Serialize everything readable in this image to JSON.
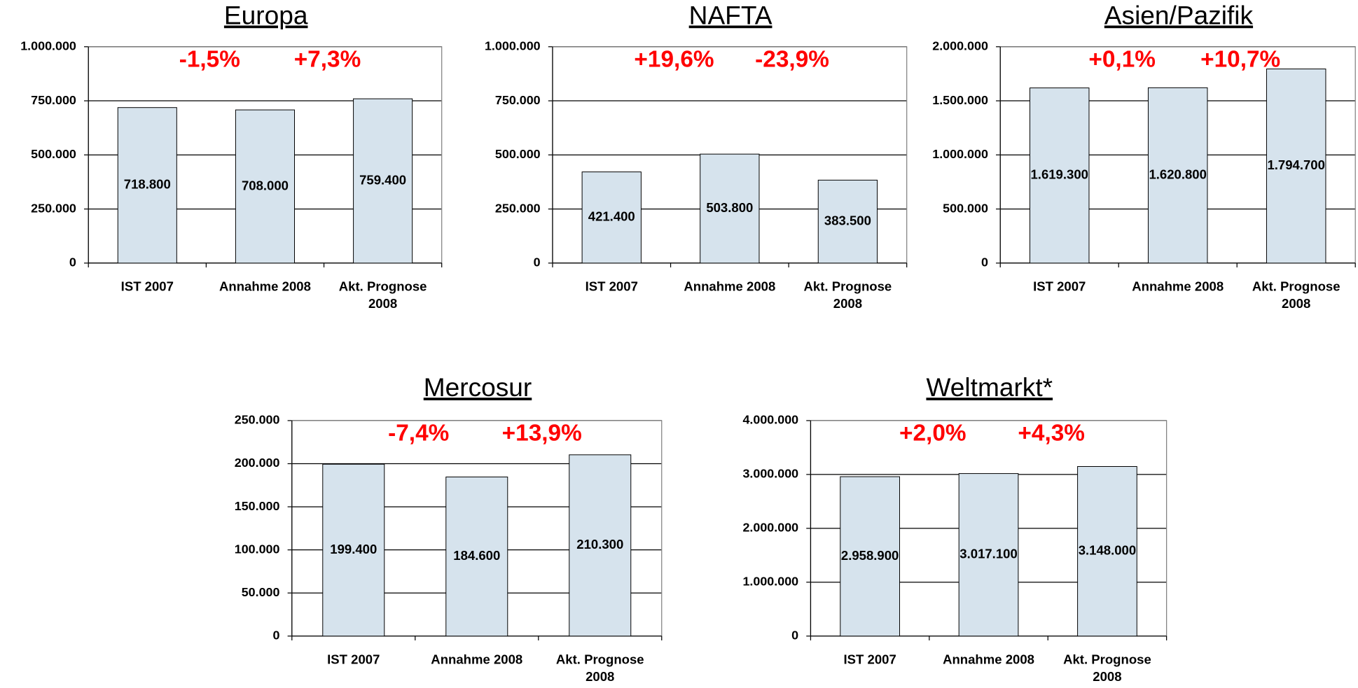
{
  "chart_data": [
    {
      "type": "bar",
      "title": "Europa",
      "annotations": [
        "-1,5%",
        "+7,3%"
      ],
      "categories": [
        "IST 2007",
        "Annahme 2008",
        "Akt. Prognose 2008"
      ],
      "values": [
        718800,
        708000,
        759400
      ],
      "value_labels": [
        "718.800",
        "708.000",
        "759.400"
      ],
      "color": "#d6e3ed",
      "ylim": [
        0,
        1000000
      ],
      "yticks": [
        0,
        {
          "value": 250000,
          "label": "250.000"
        },
        {
          "value": 500000,
          "label": "500.000"
        },
        {
          "value": 750000,
          "label": "750.000"
        },
        {
          "value": 1000000,
          "label": "1.000.000"
        }
      ],
      "grid": true
    },
    {
      "type": "bar",
      "title": "NAFTA",
      "annotations": [
        "+19,6%",
        "-23,9%"
      ],
      "categories": [
        "IST 2007",
        "Annahme 2008",
        "Akt. Prognose 2008"
      ],
      "values": [
        421400,
        503800,
        383500
      ],
      "value_labels": [
        "421.400",
        "503.800",
        "383.500"
      ],
      "color": "#d6e3ed",
      "ylim": [
        0,
        1000000
      ],
      "yticks": [
        0,
        {
          "value": 250000,
          "label": "250.000"
        },
        {
          "value": 500000,
          "label": "500.000"
        },
        {
          "value": 750000,
          "label": "750.000"
        },
        {
          "value": 1000000,
          "label": "1.000.000"
        }
      ],
      "grid": true
    },
    {
      "type": "bar",
      "title": "Asien/Pazifik",
      "annotations": [
        "+0,1%",
        "+10,7%"
      ],
      "categories": [
        "IST 2007",
        "Annahme 2008",
        "Akt. Prognose 2008"
      ],
      "values": [
        1619300,
        1620800,
        1794700
      ],
      "value_labels": [
        "1.619.300",
        "1.620.800",
        "1.794.700"
      ],
      "color": "#d6e3ed",
      "ylim": [
        0,
        2000000
      ],
      "yticks": [
        0,
        {
          "value": 500000,
          "label": "500.000"
        },
        {
          "value": 1000000,
          "label": "1.000.000"
        },
        {
          "value": 1500000,
          "label": "1.500.000"
        },
        {
          "value": 2000000,
          "label": "2.000.000"
        }
      ],
      "grid": true
    },
    {
      "type": "bar",
      "title": "Mercosur",
      "annotations": [
        "-7,4%",
        "+13,9%"
      ],
      "categories": [
        "IST 2007",
        "Annahme 2008",
        "Akt. Prognose 2008"
      ],
      "values": [
        199400,
        184600,
        210300
      ],
      "value_labels": [
        "199.400",
        "184.600",
        "210.300"
      ],
      "color": "#d6e3ed",
      "ylim": [
        0,
        250000
      ],
      "yticks": [
        0,
        {
          "value": 50000,
          "label": "50.000"
        },
        {
          "value": 100000,
          "label": "100.000"
        },
        {
          "value": 150000,
          "label": "150.000"
        },
        {
          "value": 200000,
          "label": "200.000"
        },
        {
          "value": 250000,
          "label": "250.000"
        }
      ],
      "grid": true
    },
    {
      "type": "bar",
      "title": "Weltmarkt*",
      "annotations": [
        "+2,0%",
        "+4,3%"
      ],
      "categories": [
        "IST 2007",
        "Annahme 2008",
        "Akt. Prognose 2008"
      ],
      "values": [
        2958900,
        3017100,
        3148000
      ],
      "value_labels": [
        "2.958.900",
        "3.017.100",
        "3.148.000"
      ],
      "color": "#d6e3ed",
      "ylim": [
        0,
        4000000
      ],
      "yticks": [
        0,
        {
          "value": 1000000,
          "label": "1.000.000"
        },
        {
          "value": 2000000,
          "label": "2.000.000"
        },
        {
          "value": 3000000,
          "label": "3.000.000"
        },
        {
          "value": 4000000,
          "label": "4.000.000"
        }
      ],
      "grid": true
    }
  ]
}
